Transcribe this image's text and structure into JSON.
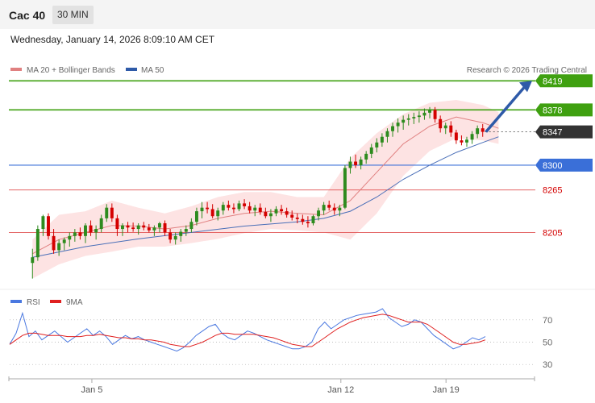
{
  "header": {
    "title": "Cac 40",
    "interval": "30 MIN"
  },
  "timestamp": "Wednesday, January 14, 2026 8:09:10 AM CET",
  "legend": {
    "ma20": "MA 20 + Bollinger Bands",
    "ma50": "MA 50",
    "credit": "Research © 2026 Trading Central",
    "rsi": "RSI",
    "rsi_ma": "9MA"
  },
  "colors": {
    "bullish": "#2e8b1e",
    "bearish": "#d40000",
    "ma20": "#e08080",
    "ma50": "#4a6fb8",
    "band_fill": "#fde3e3",
    "resistance": "#3fa010",
    "support_blue": "#3a6fd8",
    "support_red": "#e05050",
    "arrow": "#2e5aa8",
    "current": "#333333",
    "rsi": "#4a78e0",
    "rsi_ma": "#e02020"
  },
  "price_levels": [
    {
      "value": 8419,
      "label": "8419",
      "type": "resistance"
    },
    {
      "value": 8378,
      "label": "8378",
      "type": "resistance"
    },
    {
      "value": 8347,
      "label": "8347",
      "type": "current"
    },
    {
      "value": 8300,
      "label": "8300",
      "type": "pivot"
    },
    {
      "value": 8265,
      "label": "8265",
      "type": "support"
    },
    {
      "value": 8205,
      "label": "8205",
      "type": "support"
    }
  ],
  "x_axis_labels": [
    "Jan 5",
    "Jan 12",
    "Jan 19"
  ],
  "chart_data": [
    {
      "type": "candlestick",
      "ylim": [
        8135,
        8425
      ],
      "x_range": [
        0,
        190
      ],
      "x_tick_index": [
        30,
        120,
        158
      ],
      "ohlc": [
        [
          8162,
          8182,
          8140,
          8170
        ],
        [
          8170,
          8215,
          8165,
          8210
        ],
        [
          8210,
          8230,
          8200,
          8228
        ],
        [
          8228,
          8232,
          8195,
          8200
        ],
        [
          8200,
          8210,
          8175,
          8180
        ],
        [
          8180,
          8195,
          8172,
          8190
        ],
        [
          8190,
          8198,
          8180,
          8195
        ],
        [
          8195,
          8205,
          8185,
          8200
        ],
        [
          8200,
          8210,
          8192,
          8205
        ],
        [
          8205,
          8212,
          8195,
          8200
        ],
        [
          8200,
          8218,
          8190,
          8215
        ],
        [
          8215,
          8222,
          8200,
          8205
        ],
        [
          8205,
          8215,
          8195,
          8210
        ],
        [
          8210,
          8230,
          8205,
          8225
        ],
        [
          8225,
          8245,
          8220,
          8240
        ],
        [
          8240,
          8246,
          8220,
          8225
        ],
        [
          8225,
          8230,
          8200,
          8210
        ],
        [
          8210,
          8218,
          8200,
          8215
        ],
        [
          8215,
          8220,
          8205,
          8212
        ],
        [
          8212,
          8219,
          8206,
          8210
        ],
        [
          8210,
          8218,
          8202,
          8215
        ],
        [
          8215,
          8220,
          8208,
          8212
        ],
        [
          8212,
          8217,
          8205,
          8208
        ],
        [
          8208,
          8215,
          8200,
          8212
        ],
        [
          8212,
          8220,
          8205,
          8218
        ],
        [
          8218,
          8222,
          8200,
          8205
        ],
        [
          8205,
          8210,
          8190,
          8195
        ],
        [
          8195,
          8205,
          8188,
          8200
        ],
        [
          8200,
          8210,
          8192,
          8206
        ],
        [
          8206,
          8215,
          8200,
          8210
        ],
        [
          8210,
          8225,
          8205,
          8220
        ],
        [
          8220,
          8240,
          8215,
          8235
        ],
        [
          8235,
          8248,
          8225,
          8240
        ],
        [
          8240,
          8248,
          8232,
          8238
        ],
        [
          8238,
          8245,
          8225,
          8228
        ],
        [
          8228,
          8240,
          8222,
          8236
        ],
        [
          8236,
          8248,
          8230,
          8244
        ],
        [
          8244,
          8250,
          8236,
          8240
        ],
        [
          8240,
          8246,
          8232,
          8238
        ],
        [
          8238,
          8250,
          8235,
          8246
        ],
        [
          8246,
          8252,
          8238,
          8242
        ],
        [
          8242,
          8248,
          8232,
          8236
        ],
        [
          8236,
          8244,
          8228,
          8240
        ],
        [
          8240,
          8246,
          8230,
          8234
        ],
        [
          8234,
          8240,
          8225,
          8228
        ],
        [
          8228,
          8238,
          8220,
          8232
        ],
        [
          8232,
          8242,
          8228,
          8238
        ],
        [
          8238,
          8244,
          8230,
          8235
        ],
        [
          8235,
          8240,
          8226,
          8230
        ],
        [
          8230,
          8236,
          8222,
          8226
        ],
        [
          8226,
          8232,
          8218,
          8224
        ],
        [
          8224,
          8230,
          8216,
          8220
        ],
        [
          8220,
          8228,
          8212,
          8218
        ],
        [
          8218,
          8230,
          8215,
          8228
        ],
        [
          8228,
          8240,
          8222,
          8236
        ],
        [
          8236,
          8248,
          8230,
          8244
        ],
        [
          8244,
          8250,
          8236,
          8240
        ],
        [
          8240,
          8246,
          8230,
          8236
        ],
        [
          8236,
          8244,
          8228,
          8240
        ],
        [
          8240,
          8300,
          8238,
          8296
        ],
        [
          8296,
          8312,
          8288,
          8305
        ],
        [
          8305,
          8315,
          8296,
          8300
        ],
        [
          8300,
          8312,
          8294,
          8308
        ],
        [
          8308,
          8320,
          8302,
          8316
        ],
        [
          8316,
          8330,
          8310,
          8325
        ],
        [
          8325,
          8338,
          8318,
          8332
        ],
        [
          8332,
          8345,
          8326,
          8340
        ],
        [
          8340,
          8352,
          8332,
          8348
        ],
        [
          8348,
          8360,
          8340,
          8355
        ],
        [
          8355,
          8366,
          8346,
          8360
        ],
        [
          8360,
          8370,
          8350,
          8364
        ],
        [
          8364,
          8372,
          8356,
          8366
        ],
        [
          8366,
          8374,
          8358,
          8368
        ],
        [
          8368,
          8376,
          8360,
          8370
        ],
        [
          8370,
          8380,
          8364,
          8374
        ],
        [
          8374,
          8382,
          8366,
          8378
        ],
        [
          8378,
          8382,
          8360,
          8365
        ],
        [
          8365,
          8370,
          8346,
          8352
        ],
        [
          8352,
          8360,
          8344,
          8356
        ],
        [
          8356,
          8362,
          8340,
          8346
        ],
        [
          8346,
          8350,
          8330,
          8335
        ],
        [
          8335,
          8342,
          8328,
          8332
        ],
        [
          8332,
          8340,
          8326,
          8336
        ],
        [
          8336,
          8348,
          8330,
          8344
        ],
        [
          8344,
          8356,
          8338,
          8352
        ],
        [
          8352,
          8358,
          8340,
          8347
        ]
      ],
      "ma20": [
        [
          0,
          8175
        ],
        [
          5,
          8195
        ],
        [
          10,
          8205
        ],
        [
          15,
          8215
        ],
        [
          20,
          8214
        ],
        [
          25,
          8210
        ],
        [
          30,
          8215
        ],
        [
          35,
          8225
        ],
        [
          40,
          8232
        ],
        [
          45,
          8235
        ],
        [
          50,
          8232
        ],
        [
          55,
          8230
        ],
        [
          60,
          8250
        ],
        [
          65,
          8290
        ],
        [
          70,
          8330
        ],
        [
          75,
          8355
        ],
        [
          80,
          8368
        ],
        [
          85,
          8360
        ],
        [
          88,
          8352
        ]
      ],
      "ma50": [
        [
          0,
          8170
        ],
        [
          10,
          8185
        ],
        [
          20,
          8196
        ],
        [
          30,
          8205
        ],
        [
          40,
          8214
        ],
        [
          50,
          8220
        ],
        [
          55,
          8225
        ],
        [
          60,
          8235
        ],
        [
          65,
          8255
        ],
        [
          70,
          8280
        ],
        [
          75,
          8300
        ],
        [
          80,
          8318
        ],
        [
          85,
          8332
        ],
        [
          88,
          8340
        ]
      ],
      "band_upper": [
        [
          0,
          8195
        ],
        [
          5,
          8230
        ],
        [
          10,
          8235
        ],
        [
          15,
          8250
        ],
        [
          20,
          8240
        ],
        [
          25,
          8232
        ],
        [
          30,
          8242
        ],
        [
          35,
          8255
        ],
        [
          40,
          8262
        ],
        [
          45,
          8262
        ],
        [
          50,
          8255
        ],
        [
          55,
          8255
        ],
        [
          60,
          8310
        ],
        [
          65,
          8345
        ],
        [
          70,
          8372
        ],
        [
          75,
          8388
        ],
        [
          80,
          8392
        ],
        [
          85,
          8385
        ],
        [
          88,
          8375
        ]
      ],
      "band_lower": [
        [
          0,
          8140
        ],
        [
          5,
          8160
        ],
        [
          10,
          8172
        ],
        [
          15,
          8178
        ],
        [
          20,
          8185
        ],
        [
          25,
          8185
        ],
        [
          30,
          8190
        ],
        [
          35,
          8196
        ],
        [
          40,
          8204
        ],
        [
          45,
          8210
        ],
        [
          50,
          8208
        ],
        [
          55,
          8205
        ],
        [
          60,
          8195
        ],
        [
          65,
          8232
        ],
        [
          70,
          8285
        ],
        [
          75,
          8320
        ],
        [
          80,
          8338
        ],
        [
          85,
          8335
        ],
        [
          88,
          8330
        ]
      ]
    },
    {
      "type": "line",
      "ylim": [
        20,
        80
      ],
      "yticks": [
        30,
        50,
        70
      ],
      "series": [
        {
          "name": "RSI",
          "values": [
            48,
            58,
            76,
            55,
            60,
            52,
            56,
            60,
            55,
            50,
            54,
            58,
            62,
            56,
            60,
            55,
            48,
            52,
            56,
            53,
            55,
            52,
            50,
            48,
            46,
            44,
            42,
            45,
            50,
            56,
            60,
            64,
            66,
            58,
            54,
            52,
            56,
            60,
            58,
            55,
            52,
            50,
            48,
            46,
            44,
            44,
            46,
            50,
            62,
            68,
            62,
            66,
            70,
            72,
            74,
            75,
            76,
            77,
            80,
            72,
            68,
            64,
            66,
            70,
            68,
            62,
            56,
            52,
            48,
            44,
            46,
            50,
            54,
            52,
            55
          ]
        },
        {
          "name": "9MA",
          "values": [
            48,
            52,
            56,
            58,
            58,
            57,
            56,
            56,
            56,
            55,
            55,
            55,
            56,
            56,
            57,
            56,
            55,
            54,
            54,
            53,
            53,
            52,
            52,
            51,
            50,
            48,
            47,
            46,
            46,
            48,
            50,
            53,
            56,
            58,
            58,
            57,
            57,
            57,
            57,
            56,
            55,
            54,
            52,
            50,
            48,
            47,
            46,
            46,
            50,
            54,
            58,
            62,
            65,
            68,
            70,
            72,
            73,
            74,
            75,
            74,
            72,
            70,
            68,
            68,
            68,
            66,
            62,
            58,
            54,
            50,
            48,
            48,
            49,
            50,
            52
          ]
        }
      ]
    }
  ]
}
